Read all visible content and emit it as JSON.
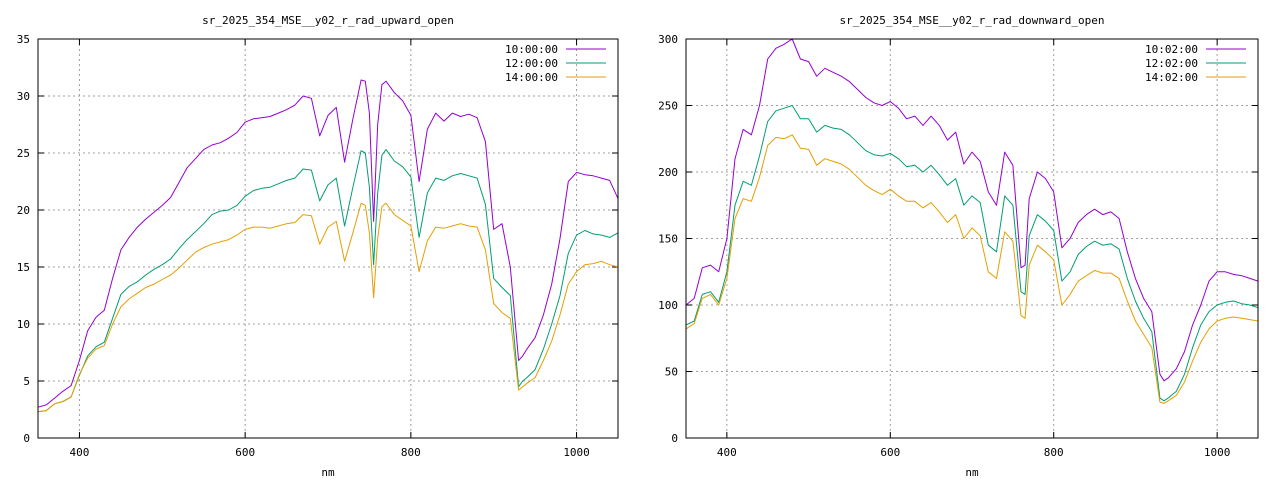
{
  "chart_data": [
    {
      "type": "line",
      "title": "sr_2025_354_MSE__y02_r_rad_upward_open",
      "xlabel": "nm",
      "ylabel": "",
      "xlim": [
        350,
        1050
      ],
      "ylim": [
        0,
        35
      ],
      "xticks": [
        400,
        600,
        800,
        1000
      ],
      "yticks": [
        0,
        5,
        10,
        15,
        20,
        25,
        30,
        35
      ],
      "grid": true,
      "legend": "top-right",
      "series": [
        {
          "name": "10:00:00",
          "color": "#9400d3",
          "x": [
            350,
            360,
            370,
            380,
            390,
            400,
            410,
            420,
            430,
            440,
            450,
            460,
            470,
            480,
            490,
            500,
            510,
            520,
            530,
            540,
            550,
            560,
            570,
            580,
            590,
            600,
            610,
            620,
            630,
            640,
            650,
            660,
            670,
            680,
            690,
            700,
            710,
            720,
            730,
            740,
            745,
            750,
            755,
            760,
            765,
            770,
            780,
            790,
            800,
            810,
            820,
            830,
            840,
            850,
            860,
            870,
            880,
            890,
            900,
            910,
            920,
            930,
            935,
            940,
            950,
            960,
            970,
            980,
            990,
            1000,
            1010,
            1020,
            1030,
            1040,
            1050
          ],
          "y": [
            2.7,
            2.9,
            3.5,
            4.1,
            4.6,
            6.8,
            9.4,
            10.6,
            11.2,
            14.0,
            16.5,
            17.6,
            18.5,
            19.2,
            19.8,
            20.4,
            21.1,
            22.4,
            23.7,
            24.5,
            25.3,
            25.7,
            25.9,
            26.3,
            26.8,
            27.7,
            28.0,
            28.1,
            28.2,
            28.5,
            28.8,
            29.2,
            30.0,
            29.8,
            26.5,
            28.3,
            29.0,
            24.2,
            28.0,
            31.4,
            31.3,
            28.5,
            19.0,
            27.5,
            31.0,
            31.3,
            30.3,
            29.6,
            28.3,
            22.5,
            27.1,
            28.5,
            27.8,
            28.5,
            28.2,
            28.4,
            28.1,
            26.0,
            18.3,
            18.8,
            15.0,
            6.8,
            7.2,
            7.8,
            8.8,
            10.8,
            13.5,
            17.5,
            22.5,
            23.3,
            23.1,
            23.0,
            22.8,
            22.6,
            21.0
          ]
        },
        {
          "name": "12:00:00",
          "color": "#009e73",
          "x": [
            350,
            360,
            370,
            380,
            390,
            400,
            410,
            420,
            430,
            440,
            450,
            460,
            470,
            480,
            490,
            500,
            510,
            520,
            530,
            540,
            550,
            560,
            570,
            580,
            590,
            600,
            610,
            620,
            630,
            640,
            650,
            660,
            670,
            680,
            690,
            700,
            710,
            720,
            730,
            740,
            745,
            750,
            755,
            760,
            765,
            770,
            780,
            790,
            800,
            810,
            820,
            830,
            840,
            850,
            860,
            870,
            880,
            890,
            900,
            910,
            920,
            930,
            935,
            940,
            950,
            960,
            970,
            980,
            990,
            1000,
            1010,
            1020,
            1030,
            1040,
            1050
          ],
          "y": [
            2.3,
            2.4,
            3.0,
            3.2,
            3.6,
            5.5,
            7.2,
            8.0,
            8.4,
            10.5,
            12.6,
            13.3,
            13.7,
            14.3,
            14.8,
            15.2,
            15.7,
            16.6,
            17.4,
            18.1,
            18.8,
            19.6,
            19.9,
            20.0,
            20.4,
            21.2,
            21.7,
            21.9,
            22.0,
            22.3,
            22.6,
            22.8,
            23.6,
            23.5,
            20.8,
            22.2,
            22.8,
            18.6,
            22.0,
            25.2,
            25.0,
            22.0,
            15.2,
            21.5,
            24.8,
            25.3,
            24.3,
            23.8,
            22.9,
            17.6,
            21.5,
            22.8,
            22.6,
            23.0,
            23.2,
            23.0,
            22.8,
            20.5,
            14.0,
            13.2,
            12.5,
            4.5,
            5.0,
            5.3,
            6.0,
            7.8,
            10.0,
            12.5,
            16.2,
            17.8,
            18.2,
            17.9,
            17.8,
            17.6,
            18.0
          ]
        },
        {
          "name": "14:00:00",
          "color": "#e69f00",
          "x": [
            350,
            360,
            370,
            380,
            390,
            400,
            410,
            420,
            430,
            440,
            450,
            460,
            470,
            480,
            490,
            500,
            510,
            520,
            530,
            540,
            550,
            560,
            570,
            580,
            590,
            600,
            610,
            620,
            630,
            640,
            650,
            660,
            670,
            680,
            690,
            700,
            710,
            720,
            730,
            740,
            745,
            750,
            755,
            760,
            765,
            770,
            780,
            790,
            800,
            810,
            820,
            830,
            840,
            850,
            860,
            870,
            880,
            890,
            900,
            910,
            920,
            930,
            935,
            940,
            950,
            960,
            970,
            980,
            990,
            1000,
            1010,
            1020,
            1030,
            1040,
            1050
          ],
          "y": [
            2.3,
            2.4,
            3.0,
            3.2,
            3.6,
            5.6,
            7.0,
            7.8,
            8.1,
            10.0,
            11.5,
            12.2,
            12.7,
            13.2,
            13.5,
            13.9,
            14.3,
            14.9,
            15.6,
            16.3,
            16.7,
            17.0,
            17.2,
            17.4,
            17.8,
            18.3,
            18.5,
            18.5,
            18.4,
            18.6,
            18.8,
            18.9,
            19.6,
            19.5,
            17.0,
            18.5,
            19.0,
            15.5,
            18.0,
            20.6,
            20.4,
            18.0,
            12.3,
            17.5,
            20.3,
            20.6,
            19.6,
            19.1,
            18.6,
            14.6,
            17.3,
            18.5,
            18.4,
            18.6,
            18.8,
            18.6,
            18.5,
            16.5,
            11.8,
            11.0,
            10.5,
            4.2,
            4.5,
            4.8,
            5.3,
            6.8,
            8.5,
            10.8,
            13.5,
            14.6,
            15.2,
            15.3,
            15.5,
            15.2,
            15.0
          ]
        }
      ]
    },
    {
      "type": "line",
      "title": "sr_2025_354_MSE__y02_r_rad_downward_open",
      "xlabel": "nm",
      "ylabel": "",
      "xlim": [
        350,
        1050
      ],
      "ylim": [
        0,
        300
      ],
      "xticks": [
        400,
        600,
        800,
        1000
      ],
      "yticks": [
        0,
        50,
        100,
        150,
        200,
        250,
        300
      ],
      "grid": true,
      "legend": "top-right",
      "series": [
        {
          "name": "10:02:00",
          "color": "#9400d3",
          "x": [
            350,
            360,
            370,
            380,
            390,
            400,
            410,
            420,
            430,
            440,
            450,
            460,
            470,
            480,
            490,
            500,
            510,
            520,
            530,
            540,
            550,
            560,
            570,
            580,
            590,
            600,
            610,
            620,
            630,
            640,
            650,
            660,
            670,
            680,
            690,
            700,
            710,
            720,
            730,
            740,
            750,
            760,
            765,
            770,
            780,
            790,
            800,
            810,
            820,
            830,
            840,
            850,
            860,
            870,
            880,
            890,
            900,
            910,
            920,
            930,
            935,
            940,
            950,
            960,
            970,
            980,
            990,
            1000,
            1010,
            1020,
            1030,
            1040,
            1050
          ],
          "y": [
            100,
            105,
            128,
            130,
            125,
            150,
            210,
            232,
            228,
            250,
            285,
            293,
            296,
            300,
            285,
            283,
            272,
            278,
            275,
            272,
            268,
            262,
            256,
            252,
            250,
            253,
            248,
            240,
            242,
            235,
            242,
            235,
            224,
            230,
            206,
            215,
            208,
            185,
            175,
            215,
            205,
            128,
            130,
            180,
            200,
            195,
            185,
            143,
            150,
            162,
            168,
            172,
            168,
            170,
            165,
            140,
            120,
            105,
            95,
            48,
            43,
            45,
            52,
            65,
            85,
            100,
            118,
            125,
            125,
            123,
            122,
            120,
            118
          ]
        },
        {
          "name": "12:02:00",
          "color": "#009e73",
          "x": [
            350,
            360,
            370,
            380,
            390,
            400,
            410,
            420,
            430,
            440,
            450,
            460,
            470,
            480,
            490,
            500,
            510,
            520,
            530,
            540,
            550,
            560,
            570,
            580,
            590,
            600,
            610,
            620,
            630,
            640,
            650,
            660,
            670,
            680,
            690,
            700,
            710,
            720,
            730,
            740,
            750,
            760,
            765,
            770,
            780,
            790,
            800,
            810,
            820,
            830,
            840,
            850,
            860,
            870,
            880,
            890,
            900,
            910,
            920,
            930,
            935,
            940,
            950,
            960,
            970,
            980,
            990,
            1000,
            1010,
            1020,
            1030,
            1040,
            1050
          ],
          "y": [
            85,
            88,
            108,
            110,
            102,
            125,
            175,
            193,
            190,
            212,
            238,
            246,
            248,
            250,
            240,
            240,
            230,
            235,
            233,
            232,
            228,
            222,
            216,
            213,
            212,
            214,
            210,
            204,
            205,
            200,
            205,
            198,
            190,
            195,
            175,
            182,
            177,
            145,
            140,
            182,
            175,
            110,
            108,
            152,
            168,
            163,
            156,
            118,
            125,
            138,
            144,
            148,
            145,
            146,
            142,
            120,
            103,
            90,
            80,
            30,
            28,
            30,
            35,
            48,
            68,
            85,
            95,
            100,
            102,
            103,
            101,
            100,
            98
          ]
        },
        {
          "name": "14:02:00",
          "color": "#e69f00",
          "x": [
            350,
            360,
            370,
            380,
            390,
            400,
            410,
            420,
            430,
            440,
            450,
            460,
            470,
            480,
            490,
            500,
            510,
            520,
            530,
            540,
            550,
            560,
            570,
            580,
            590,
            600,
            610,
            620,
            630,
            640,
            650,
            660,
            670,
            680,
            690,
            700,
            710,
            720,
            730,
            740,
            750,
            760,
            765,
            770,
            780,
            790,
            800,
            810,
            820,
            830,
            840,
            850,
            860,
            870,
            880,
            890,
            900,
            910,
            920,
            930,
            935,
            940,
            950,
            960,
            970,
            980,
            990,
            1000,
            1010,
            1020,
            1030,
            1040,
            1050
          ],
          "y": [
            82,
            86,
            105,
            108,
            100,
            120,
            165,
            180,
            178,
            196,
            220,
            226,
            225,
            228,
            218,
            217,
            205,
            210,
            208,
            206,
            202,
            196,
            190,
            186,
            183,
            187,
            182,
            178,
            178,
            173,
            177,
            170,
            162,
            168,
            150,
            158,
            152,
            125,
            120,
            155,
            148,
            92,
            90,
            130,
            145,
            140,
            134,
            100,
            108,
            118,
            122,
            126,
            124,
            124,
            120,
            103,
            88,
            78,
            68,
            27,
            26,
            28,
            32,
            42,
            58,
            72,
            82,
            88,
            90,
            91,
            90,
            89,
            88
          ]
        }
      ]
    }
  ]
}
